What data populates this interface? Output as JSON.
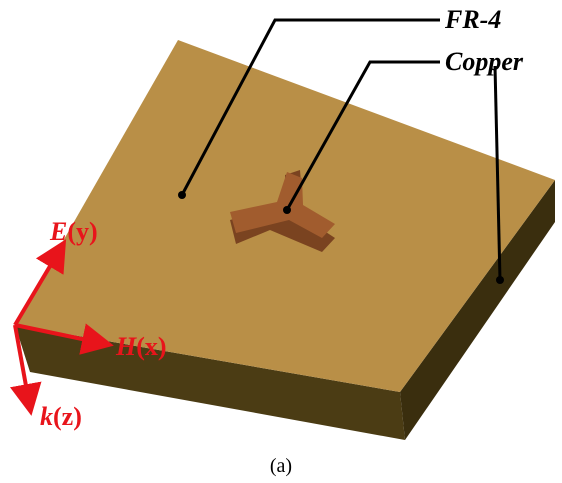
{
  "labels": {
    "fr4": "FR-4",
    "copper": "Copper"
  },
  "axes": {
    "e": {
      "symbol": "E",
      "axis": "(y)"
    },
    "h": {
      "symbol": "H",
      "axis": "(x)"
    },
    "k": {
      "symbol": "k",
      "axis": "(z)"
    }
  },
  "caption": "(a)"
}
